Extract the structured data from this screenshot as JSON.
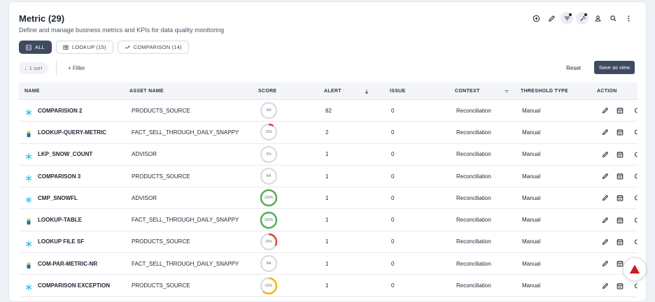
{
  "header": {
    "title": "Metric (29)",
    "subtitle": "Define and manage business metrics and KPIs for data quality monitoring"
  },
  "toolbar": {
    "icons": [
      "add-circle-icon",
      "edit-icon",
      "filter-icon",
      "magic-icon",
      "user-icon",
      "search-icon",
      "more-vertical-icon"
    ]
  },
  "tabs": [
    {
      "label": "ALL",
      "icon": "grid-icon",
      "active": true
    },
    {
      "label": "LOOKUP (15)",
      "icon": "table-icon",
      "active": false
    },
    {
      "label": "COMPARISON (14)",
      "icon": "compare-icon",
      "active": false
    }
  ],
  "controls": {
    "sort_label": "1 sort",
    "filter_label": "+ Filter",
    "reset_label": "Reset",
    "save_view_label": "Save as view"
  },
  "table": {
    "columns": [
      "NAME",
      "ASSET NAME",
      "SCORE",
      "ALERT",
      "ISSUE",
      "CONTEXT",
      "THRESHOLD TYPE",
      "ACTION"
    ],
    "rows": [
      {
        "icon": "snowflake-icon",
        "name": "COMPARISION 2",
        "asset": "PRODUCTS_SOURCE",
        "score_label": "NA",
        "score": null,
        "alert": "82",
        "issue": "0",
        "context": "Reconciliation",
        "threshold": "Manual"
      },
      {
        "icon": "database-icon",
        "name": "LOOKUP-QUERY-METRIC",
        "asset": "FACT_SELL_THROUGH_DAILY_SNAPPY",
        "score_label": "10%",
        "score": 10,
        "alert": "2",
        "issue": "0",
        "context": "Reconciliation",
        "threshold": "Manual"
      },
      {
        "icon": "snowflake-icon",
        "name": "LKP_SNOW_COUNT",
        "asset": "ADVISOR",
        "score_label": "0%",
        "score": 0,
        "alert": "1",
        "issue": "0",
        "context": "Reconciliation",
        "threshold": "Manual"
      },
      {
        "icon": "snowflake-icon",
        "name": "COMPARISON 3",
        "asset": "PRODUCTS_SOURCE",
        "score_label": "NA",
        "score": null,
        "alert": "1",
        "issue": "0",
        "context": "Reconciliation",
        "threshold": "Manual"
      },
      {
        "icon": "snowflake-icon",
        "name": "CMP_SNOWFL",
        "asset": "ADVISOR",
        "score_label": "100%",
        "score": 100,
        "alert": "1",
        "issue": "0",
        "context": "Reconciliation",
        "threshold": "Manual"
      },
      {
        "icon": "database-icon",
        "name": "LOOKUP-TABLE",
        "asset": "FACT_SELL_THROUGH_DAILY_SNAPPY",
        "score_label": "100%",
        "score": 100,
        "alert": "1",
        "issue": "0",
        "context": "Reconciliation",
        "threshold": "Manual"
      },
      {
        "icon": "snowflake-icon",
        "name": "LOOKUP FILE SF",
        "asset": "PRODUCTS_SOURCE",
        "score_label": "33%",
        "score": 33,
        "alert": "1",
        "issue": "0",
        "context": "Reconciliation",
        "threshold": "Manual"
      },
      {
        "icon": "database-icon",
        "name": "COM-PAR-METRIC-NR",
        "asset": "FACT_SELL_THROUGH_DAILY_SNAPPY",
        "score_label": "NA",
        "score": null,
        "alert": "1",
        "issue": "0",
        "context": "Reconciliation",
        "threshold": "Manual"
      },
      {
        "icon": "snowflake-icon",
        "name": "COMPARISON EXCEPTION",
        "asset": "PRODUCTS_SOURCE",
        "score_label": "63%",
        "score": 63,
        "alert": "1",
        "issue": "0",
        "context": "Reconciliation",
        "threshold": "Manual"
      }
    ]
  },
  "colors": {
    "good": "#4caf50",
    "warn": "#f5b400",
    "bad": "#e53935",
    "track": "#d7dbe2",
    "accent": "#3d4a5f",
    "snowflake": "#29b5e8",
    "fab_red": "#d0161a"
  }
}
